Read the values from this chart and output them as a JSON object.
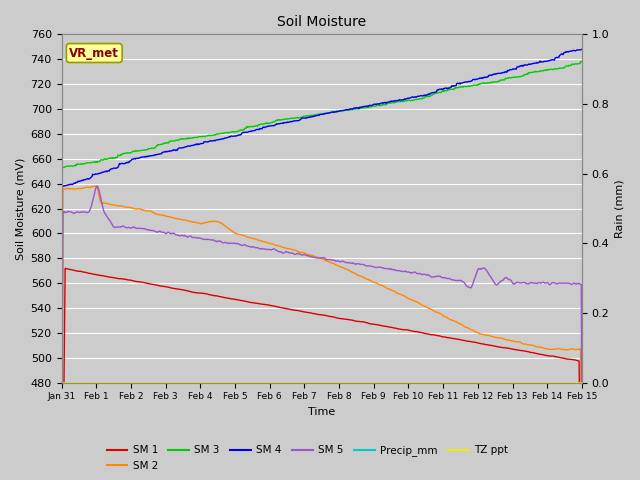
{
  "title": "Soil Moisture",
  "xlabel": "Time",
  "ylabel_left": "Soil Moisture (mV)",
  "ylabel_right": "Rain (mm)",
  "ylim_left": [
    480,
    760
  ],
  "ylim_right": [
    0.0,
    1.0
  ],
  "bg_color": "#cccccc",
  "plot_bg_color": "#cccccc",
  "grid_color": "#ffffff",
  "annotation_text": "VR_met",
  "annotation_color": "#8B0000",
  "annotation_bg": "#FFFF99",
  "annotation_edge": "#999900",
  "x_tick_labels": [
    "Jan 31",
    "Feb 1",
    "Feb 2",
    "Feb 3",
    "Feb 4",
    "Feb 5",
    "Feb 6",
    "Feb 7",
    "Feb 8",
    "Feb 9",
    "Feb 10",
    "Feb 11",
    "Feb 12",
    "Feb 13",
    "Feb 14",
    "Feb 15"
  ],
  "yticks": [
    480,
    500,
    520,
    540,
    560,
    580,
    600,
    620,
    640,
    660,
    680,
    700,
    720,
    740,
    760
  ],
  "right_yticks": [
    0.0,
    0.2,
    0.4,
    0.6,
    0.8,
    1.0
  ],
  "series": {
    "SM1": {
      "color": "#dd0000",
      "label": "SM 1"
    },
    "SM2": {
      "color": "#ff8800",
      "label": "SM 2"
    },
    "SM3": {
      "color": "#00cc00",
      "label": "SM 3"
    },
    "SM4": {
      "color": "#0000ee",
      "label": "SM 4"
    },
    "SM5": {
      "color": "#9955cc",
      "label": "SM 5"
    },
    "Precip": {
      "color": "#00cccc",
      "label": "Precip_mm"
    },
    "TZppt": {
      "color": "#eeee00",
      "label": "TZ ppt"
    }
  }
}
